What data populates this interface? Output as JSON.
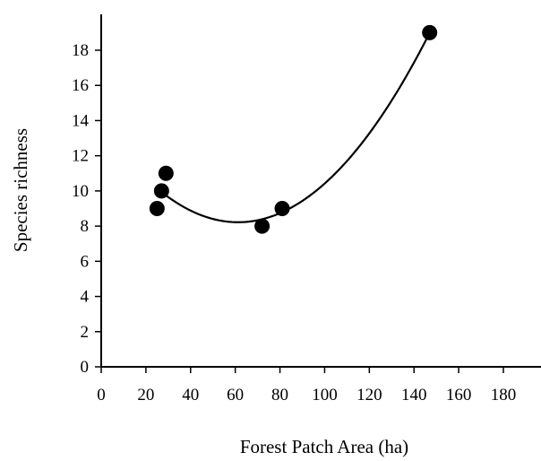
{
  "chart_data": {
    "type": "scatter",
    "title": "",
    "xlabel": "Forest Patch Area (ha)",
    "ylabel": "Species richness",
    "xlim": [
      0,
      180
    ],
    "ylim": [
      0,
      18
    ],
    "x_ticks": [
      0,
      20,
      40,
      60,
      80,
      100,
      120,
      140,
      160,
      180
    ],
    "y_ticks": [
      0,
      2,
      4,
      6,
      8,
      10,
      12,
      14,
      16,
      18
    ],
    "grid": false,
    "legend": "none",
    "marker_color": "#000000",
    "series": [
      {
        "points": [
          {
            "x": 25,
            "y": 9
          },
          {
            "x": 27,
            "y": 10
          },
          {
            "x": 29,
            "y": 11
          },
          {
            "x": 72,
            "y": 8
          },
          {
            "x": 81,
            "y": 9
          },
          {
            "x": 147,
            "y": 19
          }
        ]
      }
    ],
    "fit_curve": {
      "type": "quadratic",
      "x_range": [
        27,
        147
      ]
    }
  }
}
